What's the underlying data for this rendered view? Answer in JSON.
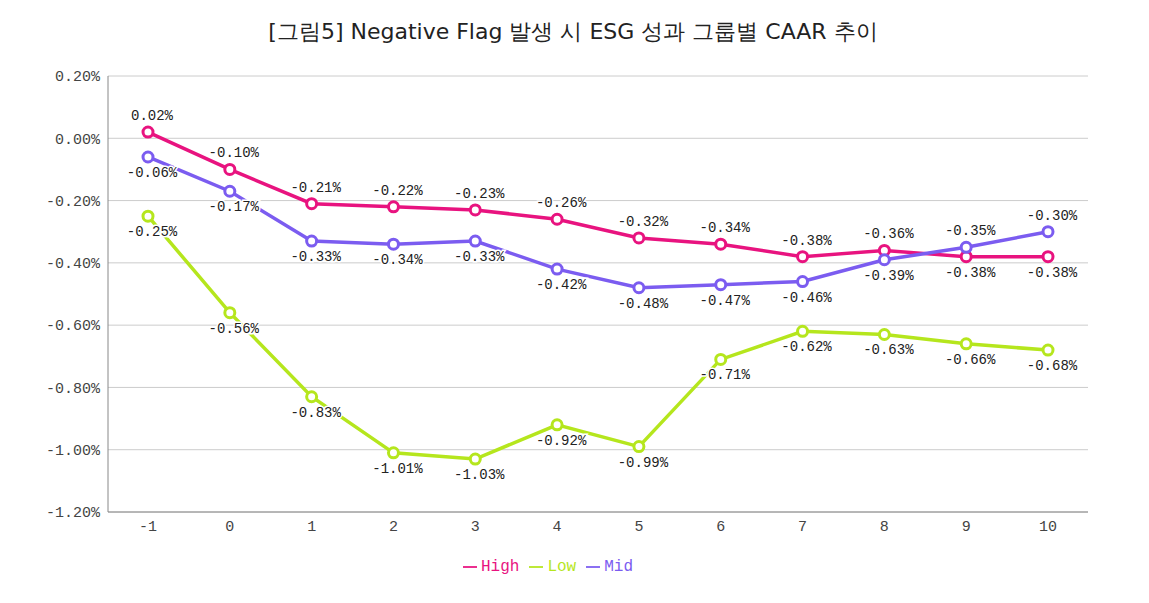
{
  "chart_data": {
    "type": "line",
    "title": "[그림5] Negative Flag 발생 시 ESG 성과 그룹별 CAAR 추이",
    "categories": [
      "-1",
      "0",
      "1",
      "2",
      "3",
      "4",
      "5",
      "6",
      "7",
      "8",
      "9",
      "10"
    ],
    "series": [
      {
        "name": "High",
        "color": "#e8137f",
        "marker": "circle",
        "values": [
          0.02,
          -0.1,
          -0.21,
          -0.22,
          -0.23,
          -0.26,
          -0.32,
          -0.34,
          -0.38,
          -0.36,
          -0.38,
          -0.38
        ],
        "value_labels": [
          "0.02%",
          "-0.10%",
          "-0.21%",
          "-0.22%",
          "-0.23%",
          "-0.26%",
          "-0.32%",
          "-0.34%",
          "-0.38%",
          "-0.36%",
          "-0.38%",
          "-0.38%"
        ]
      },
      {
        "name": "Mid",
        "color": "#7b5cf0",
        "marker": "circle",
        "values": [
          -0.06,
          -0.17,
          -0.33,
          -0.34,
          -0.33,
          -0.42,
          -0.48,
          -0.47,
          -0.46,
          -0.39,
          -0.35,
          -0.3
        ],
        "value_labels": [
          "-0.06%",
          "-0.17%",
          "-0.33%",
          "-0.34%",
          "-0.33%",
          "-0.42%",
          "-0.48%",
          "-0.47%",
          "-0.46%",
          "-0.39%",
          "-0.35%",
          "-0.30%"
        ]
      },
      {
        "name": "Low",
        "color": "#b5e61d",
        "marker": "circle",
        "values": [
          -0.25,
          -0.56,
          -0.83,
          -1.01,
          -1.03,
          -0.92,
          -0.99,
          -0.71,
          -0.62,
          -0.63,
          -0.66,
          -0.68
        ],
        "value_labels": [
          "-0.25%",
          "-0.56%",
          "-0.83%",
          "-1.01%",
          "-1.03%",
          "-0.92%",
          "-0.99%",
          "-0.71%",
          "-0.62%",
          "-0.63%",
          "-0.66%",
          "-0.68%"
        ]
      }
    ],
    "ylim": [
      -1.2,
      0.2
    ],
    "yticks": [
      {
        "value": -1.2,
        "label": "-1.20%"
      },
      {
        "value": -1.0,
        "label": "-1.00%"
      },
      {
        "value": -0.8,
        "label": "-0.80%"
      },
      {
        "value": -0.6,
        "label": "-0.60%"
      },
      {
        "value": -0.4,
        "label": "-0.40%"
      },
      {
        "value": -0.2,
        "label": "-0.20%"
      },
      {
        "value": 0,
        "label": "0.00%"
      },
      {
        "value": 0.2,
        "label": "0.20%"
      }
    ],
    "grid": true,
    "legend": "bottom",
    "data_labels": true
  }
}
